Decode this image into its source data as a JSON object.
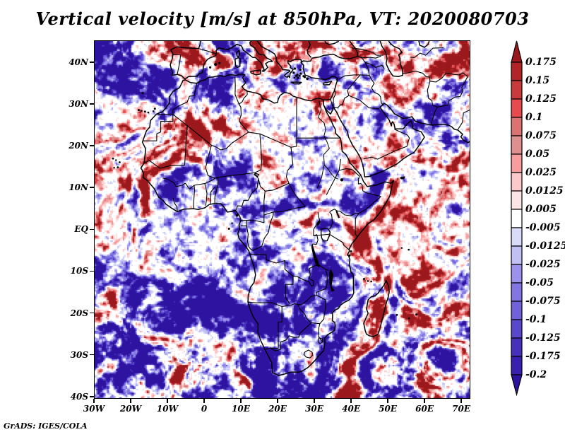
{
  "header": {
    "title": "Vertical velocity [m/s] at 850hPa, VT: 2020080703"
  },
  "footer": {
    "credit": "GrADS: IGES/COLA"
  },
  "chart_data": {
    "type": "heatmap",
    "title": "Vertical velocity [m/s] at 850hPa, VT: 2020080703",
    "variable": "Vertical velocity",
    "units": "m/s",
    "pressure_level": "850hPa",
    "valid_time": "2020080703",
    "x_axis": {
      "tick_labels": [
        "30W",
        "20W",
        "10W",
        "0",
        "10E",
        "20E",
        "30E",
        "40E",
        "50E",
        "60E",
        "70E"
      ],
      "tick_lons": [
        -30,
        -20,
        -10,
        0,
        10,
        20,
        30,
        40,
        50,
        60,
        70
      ],
      "range": [
        -30,
        72.1
      ]
    },
    "y_axis": {
      "tick_labels": [
        "40N",
        "30N",
        "20N",
        "10N",
        "EQ",
        "10S",
        "20S",
        "30S",
        "40S"
      ],
      "tick_lats": [
        40,
        30,
        20,
        10,
        0,
        -10,
        -20,
        -30,
        -40
      ],
      "range": [
        -40.2,
        45.2
      ]
    },
    "colorbar": {
      "orientation": "vertical",
      "position": "right",
      "arrow_caps": true,
      "tick_labels": [
        "0.175",
        "0.15",
        "0.125",
        "0.1",
        "0.075",
        "0.05",
        "0.025",
        "0.0125",
        "0.005",
        "-0.005",
        "-0.0125",
        "-0.025",
        "-0.05",
        "-0.075",
        "-0.1",
        "-0.125",
        "-0.175",
        "-0.2"
      ],
      "levels": [
        0.175,
        0.15,
        0.125,
        0.1,
        0.075,
        0.05,
        0.025,
        0.0125,
        0.005,
        -0.005,
        -0.0125,
        -0.025,
        -0.05,
        -0.075,
        -0.1,
        -0.125,
        -0.175,
        -0.2
      ],
      "colors_top_to_bottom": [
        "#9b191c",
        "#b22427",
        "#c83a3c",
        "#e84b4e",
        "#dd7273",
        "#de8f90",
        "#f89d9d",
        "#fcc8c8",
        "#fbe4e4",
        "#ffffff",
        "#d9dcf9",
        "#c0c0f4",
        "#9c92ee",
        "#8276e2",
        "#6f62da",
        "#5a48cc",
        "#4731bc",
        "#3a20ae",
        "#2e12a0"
      ]
    },
    "line_colors": {
      "coastline": "#000000",
      "border": "#000000",
      "river": "#000000"
    }
  }
}
